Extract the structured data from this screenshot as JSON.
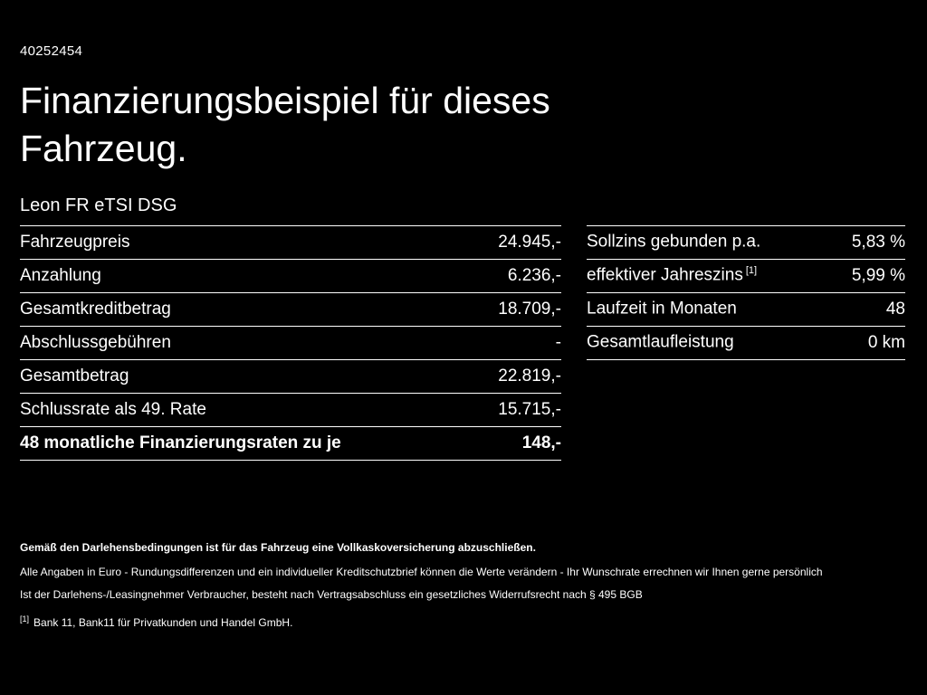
{
  "header": {
    "id": "40252454",
    "title": "Finanzierungsbeispiel für dieses Fahrzeug.",
    "model": "Leon FR eTSI DSG"
  },
  "financing_table": {
    "rows": [
      {
        "label": "Fahrzeugpreis",
        "value": "24.945,-"
      },
      {
        "label": "Anzahlung",
        "value": "6.236,-"
      },
      {
        "label": "Gesamtkreditbetrag",
        "value": "18.709,-"
      },
      {
        "label": "Abschlussgebühren",
        "value": "-"
      },
      {
        "label": "Gesamtbetrag",
        "value": "22.819,-"
      },
      {
        "label": "Schlussrate als 49. Rate",
        "value": "15.715,-"
      },
      {
        "label": "48 monatliche Finanzierungsraten zu je",
        "value": "148,-"
      }
    ]
  },
  "conditions_table": {
    "rows": [
      {
        "label": "Sollzins gebunden p.a.",
        "sup": "",
        "value": "5,83 %"
      },
      {
        "label": "effektiver Jahreszins",
        "sup": "[1]",
        "value": "5,99 %"
      },
      {
        "label": "Laufzeit in Monaten",
        "sup": "",
        "value": "48"
      },
      {
        "label": "Gesamtlaufleistung",
        "sup": "",
        "value": "0 km"
      }
    ]
  },
  "footer": {
    "insurance_note": "Gemäß den Darlehensbedingungen ist für das Fahrzeug eine Vollkaskoversicherung abzuschließen.",
    "disclaimer_line1": "Alle Angaben in Euro - Rundungsdifferenzen und ein individueller Kreditschutzbrief können die Werte verändern - Ihr Wunschrate errechnen wir Ihnen gerne persönlich",
    "disclaimer_line2": "Ist der Darlehens-/Leasingnehmer Verbraucher, besteht nach Vertragsabschluss ein gesetzliches Widerrufsrecht nach § 495 BGB",
    "ref_marker": "[1]",
    "ref_text": "Bank 11, Bank11 für Privatkunden und Handel GmbH."
  }
}
